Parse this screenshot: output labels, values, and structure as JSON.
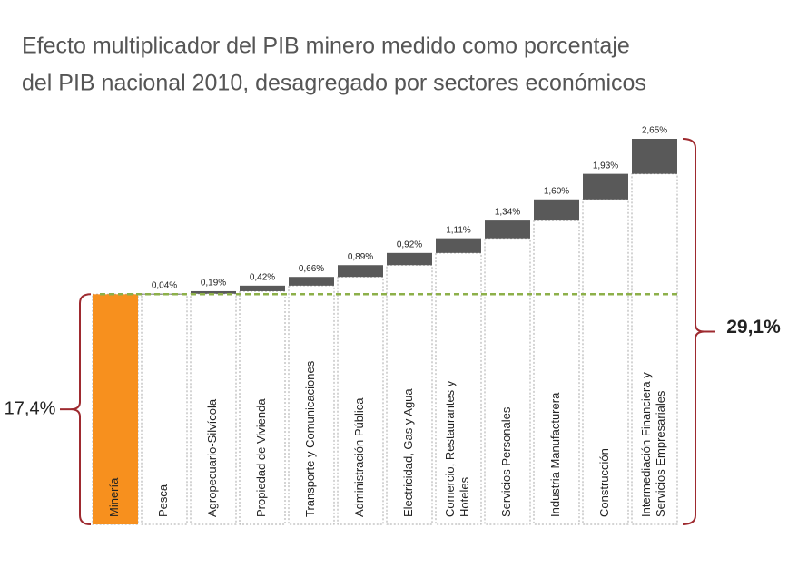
{
  "chart_data": {
    "type": "waterfall",
    "title": [
      "Efecto multiplicador del PIB minero medido como porcentaje",
      "del PIB nacional 2010, desagregado por sectores económicos"
    ],
    "categories": [
      [
        "Minería"
      ],
      [
        "Pesca"
      ],
      [
        "Agropecuario-Silvícola"
      ],
      [
        "Propiedad de Vivienda"
      ],
      [
        "Transporte y Comunicaciones"
      ],
      [
        "Administración Pública"
      ],
      [
        "Electricidad, Gas y Agua"
      ],
      [
        "Comercio, Restaurantes y",
        "Hoteles"
      ],
      [
        "Servicios Personales"
      ],
      [
        "Industria Manufacturera"
      ],
      [
        "Construcción"
      ],
      [
        "Intermediación Financiera y",
        "Servicios Empresariales"
      ]
    ],
    "values": [
      17.4,
      0.04,
      0.19,
      0.42,
      0.66,
      0.89,
      0.92,
      1.11,
      1.34,
      1.6,
      1.93,
      2.65
    ],
    "value_labels": [
      "17,4%",
      "0,04%",
      "0,19%",
      "0,42%",
      "0,66%",
      "0,89%",
      "0,92%",
      "1,11%",
      "1,34%",
      "1,60%",
      "1,93%",
      "2,65%"
    ],
    "total": 29.1,
    "total_label": "29,1%",
    "base_color": "#f7901e",
    "step_color": "#595959",
    "bracket_color": "#9e2a2f",
    "reference_color": "#8db04a"
  }
}
